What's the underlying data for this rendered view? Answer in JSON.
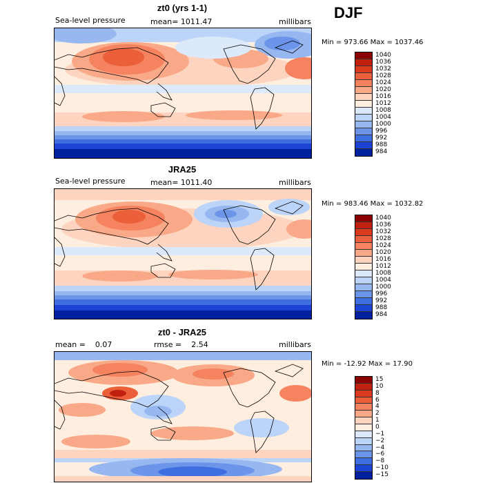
{
  "season": "DJF",
  "panels": [
    {
      "title": "zt0 (yrs 1-1)",
      "left_label": "Sea-level pressure",
      "center_label": "mean= 1011.47",
      "units": "millibars",
      "minmax": "Min = 973.66 Max = 1037.46",
      "colorbar_labels": [
        "1040",
        "1036",
        "1032",
        "1028",
        "1024",
        "1020",
        "1016",
        "1012",
        "1008",
        "1004",
        "1000",
        "996",
        "992",
        "988",
        "984"
      ],
      "colorbar_colors": [
        "#8b0000",
        "#c0210f",
        "#db3b1d",
        "#ec5f3b",
        "#f5835f",
        "#f9a988",
        "#fdd4bf",
        "#fdeedf",
        "#dbe9fb",
        "#bcd4f7",
        "#97b7f1",
        "#6c95ea",
        "#3f6ee2",
        "#1c44d4",
        "#00209e"
      ]
    },
    {
      "title": "JRA25",
      "left_label": "Sea-level pressure",
      "center_label": "mean= 1011.40",
      "units": "millibars",
      "minmax": "Min = 983.46 Max = 1032.82",
      "colorbar_labels": [
        "1040",
        "1036",
        "1032",
        "1028",
        "1024",
        "1020",
        "1016",
        "1012",
        "1008",
        "1004",
        "1000",
        "996",
        "992",
        "988",
        "984"
      ],
      "colorbar_colors": [
        "#8b0000",
        "#c0210f",
        "#db3b1d",
        "#ec5f3b",
        "#f5835f",
        "#f9a988",
        "#fdd4bf",
        "#fdeedf",
        "#dbe9fb",
        "#bcd4f7",
        "#97b7f1",
        "#6c95ea",
        "#3f6ee2",
        "#1c44d4",
        "#00209e"
      ]
    },
    {
      "title": "zt0 - JRA25",
      "left_label": "mean =    0.07",
      "center_label": "rmse =    2.54",
      "units": "millibars",
      "minmax": "Min = -12.92 Max =  17.90",
      "colorbar_labels": [
        "15",
        "10",
        "8",
        "6",
        "4",
        "2",
        "1",
        "0",
        "−1",
        "−2",
        "−4",
        "−6",
        "−8",
        "−10",
        "−15"
      ],
      "colorbar_colors": [
        "#8b0000",
        "#c0210f",
        "#db3b1d",
        "#ec5f3b",
        "#f5835f",
        "#f9a988",
        "#fdd4bf",
        "#fdeedf",
        "#dbe9fb",
        "#bcd4f7",
        "#97b7f1",
        "#6c95ea",
        "#3f6ee2",
        "#1c44d4",
        "#00209e"
      ]
    }
  ]
}
